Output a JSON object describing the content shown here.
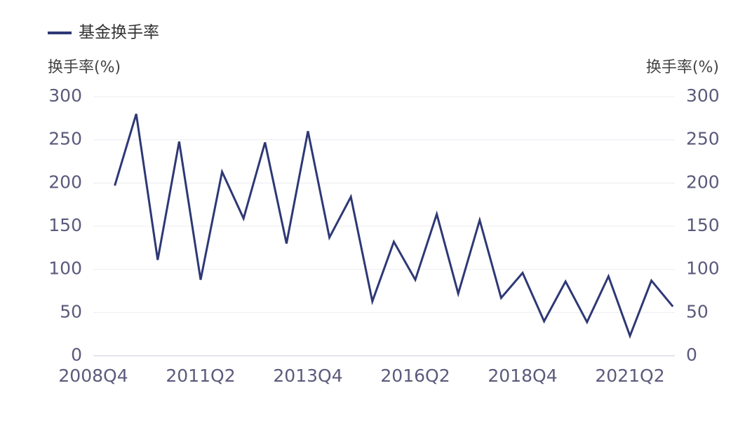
{
  "chart_data": {
    "type": "line",
    "legend_position": "top-left",
    "ylabel": "换手率(%)",
    "y2label": "换手率(%)",
    "categories": [
      "2008Q4",
      null,
      null,
      null,
      null,
      "2011Q2",
      null,
      null,
      null,
      null,
      "2013Q4",
      null,
      null,
      null,
      null,
      "2016Q2",
      null,
      null,
      null,
      null,
      "2018Q4",
      null,
      null,
      null,
      null,
      "2021Q2",
      null,
      null
    ],
    "series": [
      {
        "name": "基金换手率",
        "color": "#2e3875",
        "values": [
          null,
          197,
          280,
          111,
          248,
          88,
          213,
          159,
          247,
          130,
          260,
          137,
          184,
          63,
          132,
          88,
          164,
          72,
          157,
          67,
          96,
          40,
          86,
          39,
          92,
          23,
          87,
          57
        ]
      }
    ],
    "ylim": [
      0,
      300
    ],
    "yticks": [
      0,
      50,
      100,
      150,
      200,
      250,
      300
    ],
    "y2lim": [
      0,
      300
    ],
    "y2ticks": [
      0,
      50,
      100,
      150,
      200,
      250,
      300
    ],
    "grid": true
  }
}
